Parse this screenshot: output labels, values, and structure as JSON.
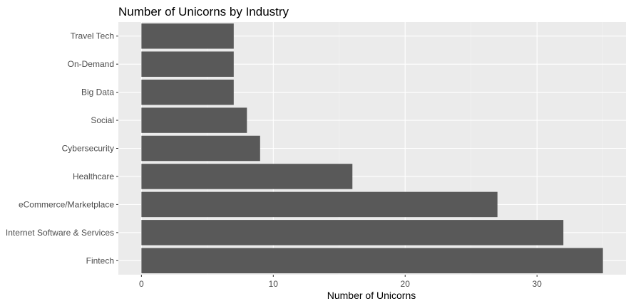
{
  "chart_data": {
    "type": "bar",
    "orientation": "horizontal",
    "title": "Number of Unicorns by Industry",
    "xlabel": "Number of Unicorns",
    "ylabel": "",
    "categories": [
      "Fintech",
      "Internet Software & Services",
      "eCommerce/Marketplace",
      "Healthcare",
      "Cybersecurity",
      "Social",
      "Big Data",
      "On-Demand",
      "Travel Tech"
    ],
    "values": [
      35,
      32,
      27,
      16,
      9,
      8,
      7,
      7,
      7
    ],
    "xlim": [
      -1.75,
      36.75
    ],
    "xticks": [
      0,
      10,
      20,
      30
    ],
    "grid": true,
    "legend": "none",
    "colors": {
      "bar": "#595959",
      "panel": "#ebebeb",
      "grid_major": "#ffffff",
      "grid_minor": "#f5f5f5",
      "tick": "#333333"
    }
  }
}
